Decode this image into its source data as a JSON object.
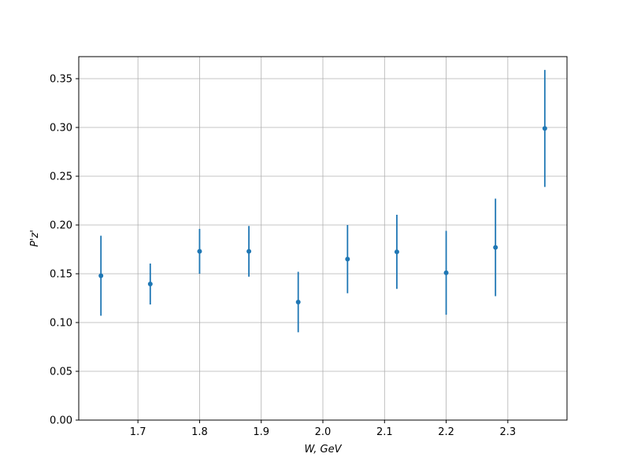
{
  "chart_data": {
    "type": "errorbar",
    "x_label": "W, GeV",
    "y_label": "P'z'",
    "x": [
      1.64,
      1.72,
      1.8,
      1.88,
      1.96,
      2.04,
      2.12,
      2.2,
      2.28,
      2.36
    ],
    "values": [
      0.148,
      0.1395,
      0.173,
      0.173,
      0.121,
      0.165,
      0.1725,
      0.151,
      0.177,
      0.299
    ],
    "errors": [
      0.041,
      0.021,
      0.023,
      0.026,
      0.031,
      0.035,
      0.038,
      0.043,
      0.05,
      0.06
    ],
    "color": "#1f77b4",
    "xlim": [
      1.604,
      2.396
    ],
    "ylim": [
      0,
      0.3726
    ],
    "xticks": [
      1.7,
      1.8,
      1.9,
      {
        "value": 2,
        "label": "2.0"
      },
      2.1,
      2.2,
      2.3
    ],
    "yticks": [
      {
        "value": 0,
        "label": "0.00"
      },
      {
        "value": 0.05,
        "label": "0.05"
      },
      {
        "value": 0.1,
        "label": "0.10"
      },
      {
        "value": 0.15,
        "label": "0.15"
      },
      {
        "value": 0.2,
        "label": "0.20"
      },
      {
        "value": 0.25,
        "label": "0.25"
      },
      {
        "value": 0.3,
        "label": "0.30"
      },
      {
        "value": 0.35,
        "label": "0.35"
      }
    ],
    "grid": true
  }
}
